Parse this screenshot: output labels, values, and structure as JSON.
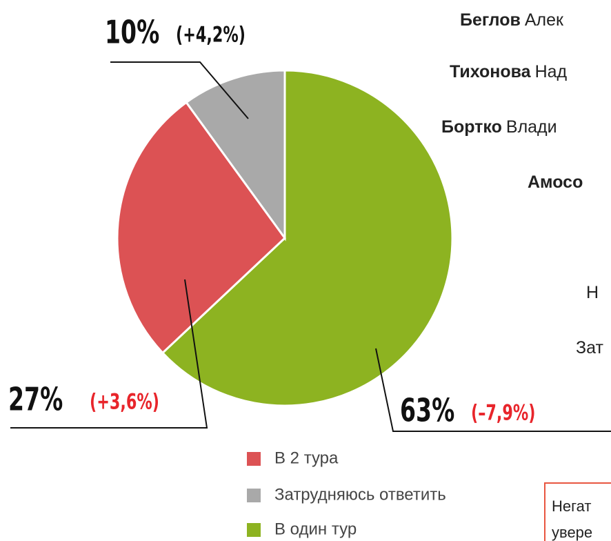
{
  "chart_data": {
    "type": "pie",
    "categories": [
      "В один тур",
      "В 2 тура",
      "Затрудняюсь  ответить"
    ],
    "values": [
      63,
      27,
      10
    ],
    "value_labels": [
      "63%",
      "27%",
      "10%"
    ],
    "changes": [
      "(–7,9%)",
      "(+3,6%)",
      "(+4,2%)"
    ],
    "change_colors": [
      "#e8252b",
      "#e8252b",
      "#111111"
    ],
    "colors": [
      "#8db321",
      "#dc5254",
      "#a9a9a9"
    ]
  },
  "side_labels": [
    {
      "bold": "Беглов",
      "rest": "Алек"
    },
    {
      "bold": "Тихонова",
      "rest": "Над"
    },
    {
      "bold": "Бортко",
      "rest": "Влади"
    },
    {
      "bold": "Амосо",
      "rest": ""
    },
    {
      "bold": "",
      "rest": "Н"
    },
    {
      "bold": "",
      "rest": "Зат"
    }
  ],
  "note": [
    "Негат",
    "увере"
  ]
}
